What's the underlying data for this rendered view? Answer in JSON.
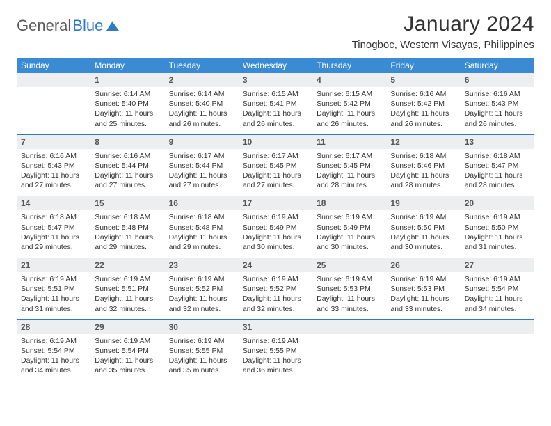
{
  "logo": {
    "part1": "General",
    "part2": "Blue"
  },
  "title": "January 2024",
  "location": "Tinogboc, Western Visayas, Philippines",
  "colors": {
    "header_bg": "#3b8bd4",
    "header_text": "#ffffff",
    "daynum_bg": "#eceeef",
    "accent": "#2d7bc4",
    "body_text": "#333333"
  },
  "weekdays": [
    "Sunday",
    "Monday",
    "Tuesday",
    "Wednesday",
    "Thursday",
    "Friday",
    "Saturday"
  ],
  "weeks": [
    {
      "nums": [
        "",
        "1",
        "2",
        "3",
        "4",
        "5",
        "6"
      ],
      "cells": [
        {
          "empty": true
        },
        {
          "sunrise": "Sunrise: 6:14 AM",
          "sunset": "Sunset: 5:40 PM",
          "day1": "Daylight: 11 hours",
          "day2": "and 25 minutes."
        },
        {
          "sunrise": "Sunrise: 6:14 AM",
          "sunset": "Sunset: 5:40 PM",
          "day1": "Daylight: 11 hours",
          "day2": "and 26 minutes."
        },
        {
          "sunrise": "Sunrise: 6:15 AM",
          "sunset": "Sunset: 5:41 PM",
          "day1": "Daylight: 11 hours",
          "day2": "and 26 minutes."
        },
        {
          "sunrise": "Sunrise: 6:15 AM",
          "sunset": "Sunset: 5:42 PM",
          "day1": "Daylight: 11 hours",
          "day2": "and 26 minutes."
        },
        {
          "sunrise": "Sunrise: 6:16 AM",
          "sunset": "Sunset: 5:42 PM",
          "day1": "Daylight: 11 hours",
          "day2": "and 26 minutes."
        },
        {
          "sunrise": "Sunrise: 6:16 AM",
          "sunset": "Sunset: 5:43 PM",
          "day1": "Daylight: 11 hours",
          "day2": "and 26 minutes."
        }
      ]
    },
    {
      "nums": [
        "7",
        "8",
        "9",
        "10",
        "11",
        "12",
        "13"
      ],
      "cells": [
        {
          "sunrise": "Sunrise: 6:16 AM",
          "sunset": "Sunset: 5:43 PM",
          "day1": "Daylight: 11 hours",
          "day2": "and 27 minutes."
        },
        {
          "sunrise": "Sunrise: 6:16 AM",
          "sunset": "Sunset: 5:44 PM",
          "day1": "Daylight: 11 hours",
          "day2": "and 27 minutes."
        },
        {
          "sunrise": "Sunrise: 6:17 AM",
          "sunset": "Sunset: 5:44 PM",
          "day1": "Daylight: 11 hours",
          "day2": "and 27 minutes."
        },
        {
          "sunrise": "Sunrise: 6:17 AM",
          "sunset": "Sunset: 5:45 PM",
          "day1": "Daylight: 11 hours",
          "day2": "and 27 minutes."
        },
        {
          "sunrise": "Sunrise: 6:17 AM",
          "sunset": "Sunset: 5:45 PM",
          "day1": "Daylight: 11 hours",
          "day2": "and 28 minutes."
        },
        {
          "sunrise": "Sunrise: 6:18 AM",
          "sunset": "Sunset: 5:46 PM",
          "day1": "Daylight: 11 hours",
          "day2": "and 28 minutes."
        },
        {
          "sunrise": "Sunrise: 6:18 AM",
          "sunset": "Sunset: 5:47 PM",
          "day1": "Daylight: 11 hours",
          "day2": "and 28 minutes."
        }
      ]
    },
    {
      "nums": [
        "14",
        "15",
        "16",
        "17",
        "18",
        "19",
        "20"
      ],
      "cells": [
        {
          "sunrise": "Sunrise: 6:18 AM",
          "sunset": "Sunset: 5:47 PM",
          "day1": "Daylight: 11 hours",
          "day2": "and 29 minutes."
        },
        {
          "sunrise": "Sunrise: 6:18 AM",
          "sunset": "Sunset: 5:48 PM",
          "day1": "Daylight: 11 hours",
          "day2": "and 29 minutes."
        },
        {
          "sunrise": "Sunrise: 6:18 AM",
          "sunset": "Sunset: 5:48 PM",
          "day1": "Daylight: 11 hours",
          "day2": "and 29 minutes."
        },
        {
          "sunrise": "Sunrise: 6:19 AM",
          "sunset": "Sunset: 5:49 PM",
          "day1": "Daylight: 11 hours",
          "day2": "and 30 minutes."
        },
        {
          "sunrise": "Sunrise: 6:19 AM",
          "sunset": "Sunset: 5:49 PM",
          "day1": "Daylight: 11 hours",
          "day2": "and 30 minutes."
        },
        {
          "sunrise": "Sunrise: 6:19 AM",
          "sunset": "Sunset: 5:50 PM",
          "day1": "Daylight: 11 hours",
          "day2": "and 30 minutes."
        },
        {
          "sunrise": "Sunrise: 6:19 AM",
          "sunset": "Sunset: 5:50 PM",
          "day1": "Daylight: 11 hours",
          "day2": "and 31 minutes."
        }
      ]
    },
    {
      "nums": [
        "21",
        "22",
        "23",
        "24",
        "25",
        "26",
        "27"
      ],
      "cells": [
        {
          "sunrise": "Sunrise: 6:19 AM",
          "sunset": "Sunset: 5:51 PM",
          "day1": "Daylight: 11 hours",
          "day2": "and 31 minutes."
        },
        {
          "sunrise": "Sunrise: 6:19 AM",
          "sunset": "Sunset: 5:51 PM",
          "day1": "Daylight: 11 hours",
          "day2": "and 32 minutes."
        },
        {
          "sunrise": "Sunrise: 6:19 AM",
          "sunset": "Sunset: 5:52 PM",
          "day1": "Daylight: 11 hours",
          "day2": "and 32 minutes."
        },
        {
          "sunrise": "Sunrise: 6:19 AM",
          "sunset": "Sunset: 5:52 PM",
          "day1": "Daylight: 11 hours",
          "day2": "and 32 minutes."
        },
        {
          "sunrise": "Sunrise: 6:19 AM",
          "sunset": "Sunset: 5:53 PM",
          "day1": "Daylight: 11 hours",
          "day2": "and 33 minutes."
        },
        {
          "sunrise": "Sunrise: 6:19 AM",
          "sunset": "Sunset: 5:53 PM",
          "day1": "Daylight: 11 hours",
          "day2": "and 33 minutes."
        },
        {
          "sunrise": "Sunrise: 6:19 AM",
          "sunset": "Sunset: 5:54 PM",
          "day1": "Daylight: 11 hours",
          "day2": "and 34 minutes."
        }
      ]
    },
    {
      "nums": [
        "28",
        "29",
        "30",
        "31",
        "",
        "",
        ""
      ],
      "cells": [
        {
          "sunrise": "Sunrise: 6:19 AM",
          "sunset": "Sunset: 5:54 PM",
          "day1": "Daylight: 11 hours",
          "day2": "and 34 minutes."
        },
        {
          "sunrise": "Sunrise: 6:19 AM",
          "sunset": "Sunset: 5:54 PM",
          "day1": "Daylight: 11 hours",
          "day2": "and 35 minutes."
        },
        {
          "sunrise": "Sunrise: 6:19 AM",
          "sunset": "Sunset: 5:55 PM",
          "day1": "Daylight: 11 hours",
          "day2": "and 35 minutes."
        },
        {
          "sunrise": "Sunrise: 6:19 AM",
          "sunset": "Sunset: 5:55 PM",
          "day1": "Daylight: 11 hours",
          "day2": "and 36 minutes."
        },
        {
          "empty": true
        },
        {
          "empty": true
        },
        {
          "empty": true
        }
      ]
    }
  ]
}
